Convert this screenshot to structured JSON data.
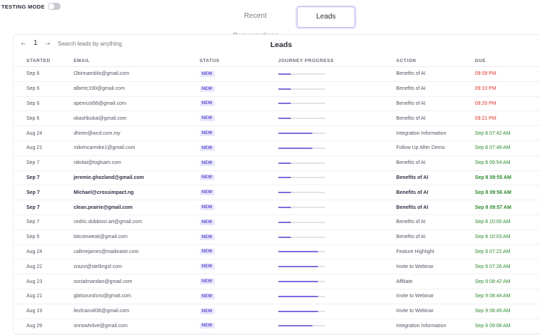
{
  "testing_mode": {
    "label": "TESTING MODE",
    "enabled": false
  },
  "tabs": [
    {
      "label": "Recent Conversations",
      "active": false
    },
    {
      "label": "Leads",
      "active": true
    }
  ],
  "leads": {
    "title": "Leads",
    "pager": {
      "prev": "←",
      "page": "1",
      "next": "→"
    },
    "search_placeholder": "Search leads by anything",
    "columns": [
      "STARTED",
      "EMAIL",
      "STATUS",
      "JOURNEY PROGRESS",
      "ACTION",
      "DUE"
    ],
    "rows": [
      {
        "started": "Sep 6",
        "email": "Obinnamblis@gmail.com",
        "status": "NEW",
        "progress": 0.27,
        "action": "Benefits of AI",
        "due": "09:09 PM",
        "due_color": "#d9342b",
        "bold": false
      },
      {
        "started": "Sep 6",
        "email": "albertc190@gmail.com",
        "status": "NEW",
        "progress": 0.27,
        "action": "Benefits of AI",
        "due": "09:10 PM",
        "due_color": "#d9342b",
        "bold": false
      },
      {
        "started": "Sep 6",
        "email": "apexrust66@gmail.com",
        "status": "NEW",
        "progress": 0.27,
        "action": "Benefits of AI",
        "due": "09:20 PM",
        "due_color": "#d9342b",
        "bold": false
      },
      {
        "started": "Sep 6",
        "email": "okashbukai@gmail.com",
        "status": "NEW",
        "progress": 0.27,
        "action": "Benefits of AI",
        "due": "09:21 PM",
        "due_color": "#d9342b",
        "bold": false
      },
      {
        "started": "Aug 24",
        "email": "dhiren@wcd.com.my",
        "status": "NEW",
        "progress": 0.72,
        "action": "Integration Information",
        "due": "Sep 8 07:42 AM",
        "due_color": "#2f8a2f",
        "bold": false
      },
      {
        "started": "Aug 21",
        "email": "mikencarmike1@gmail.com",
        "status": "NEW",
        "progress": 0.72,
        "action": "Follow Up After Demo",
        "due": "Sep 8 07:48 AM",
        "due_color": "#2f8a2f",
        "bold": false
      },
      {
        "started": "Sep 7",
        "email": "nikolai@toglsam.com",
        "status": "NEW",
        "progress": 0.27,
        "action": "Benefits of AI",
        "due": "Sep 8 09:54 AM",
        "due_color": "#2f8a2f",
        "bold": false
      },
      {
        "started": "Sep 7",
        "email": "jeremie.ghozland@gmail.com",
        "status": "NEW",
        "progress": 0.27,
        "action": "Benefits of AI",
        "due": "Sep 8 09:55 AM",
        "due_color": "#2f8a2f",
        "bold": true
      },
      {
        "started": "Sep 7",
        "email": "Michael@crossimpact.ng",
        "status": "NEW",
        "progress": 0.27,
        "action": "Benefits of AI",
        "due": "Sep 8 09:56 AM",
        "due_color": "#2f8a2f",
        "bold": true
      },
      {
        "started": "Sep 7",
        "email": "clean.prairie@gmail.com",
        "status": "NEW",
        "progress": 0.27,
        "action": "Benefits of AI",
        "due": "Sep 8 09:57 AM",
        "due_color": "#2f8a2f",
        "bold": true
      },
      {
        "started": "Sep 7",
        "email": "cedric.dubbiosi.art@gmail.com",
        "status": "NEW",
        "progress": 0.27,
        "action": "Benefits of AI",
        "due": "Sep 8 10:00 AM",
        "due_color": "#2f8a2f",
        "bold": false
      },
      {
        "started": "Sep 6",
        "email": "bitcoinweok@gmail.com",
        "status": "NEW",
        "progress": 0.27,
        "action": "Benefits of AI",
        "due": "Sep 8 10:03 AM",
        "due_color": "#2f8a2f",
        "bold": false
      },
      {
        "started": "Aug 24",
        "email": "callmejames@mailinator.com",
        "status": "NEW",
        "progress": 0.85,
        "action": "Feature Highlight",
        "due": "Sep 9 07:22 AM",
        "due_color": "#2f8a2f",
        "bold": false
      },
      {
        "started": "Aug 22",
        "email": "zrazvi@stellingsf.com",
        "status": "NEW",
        "progress": 0.85,
        "action": "Invite to Webinar",
        "due": "Sep 9 07:26 AM",
        "due_color": "#2f8a2f",
        "bold": false
      },
      {
        "started": "Aug 23",
        "email": "socialmandan@gmail.com",
        "status": "NEW",
        "progress": 0.85,
        "action": "Affiliate",
        "due": "Sep 9 08:42 AM",
        "due_color": "#2f8a2f",
        "bold": false
      },
      {
        "started": "Aug 21",
        "email": "gbitsoundsrio@gmail.com",
        "status": "NEW",
        "progress": 0.85,
        "action": "Invite to Webinar",
        "due": "Sep 9 08:44 AM",
        "due_color": "#2f8a2f",
        "bold": false
      },
      {
        "started": "Aug 19",
        "email": "liezlcano836@gmail.com",
        "status": "NEW",
        "progress": 0.85,
        "action": "Invite to Webinar",
        "due": "Sep 9 08:49 AM",
        "due_color": "#2f8a2f",
        "bold": false
      },
      {
        "started": "Aug 29",
        "email": "onnowtvlive@gmail.com",
        "status": "NEW",
        "progress": 0.72,
        "action": "Integration Information",
        "due": "Sep 9 09:08 AM",
        "due_color": "#2f8a2f",
        "bold": false
      }
    ]
  }
}
